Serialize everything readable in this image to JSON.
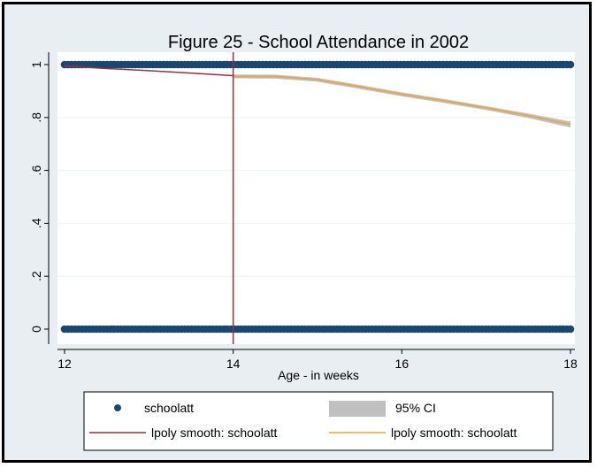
{
  "chart_data": {
    "type": "scatter",
    "title": "Figure 25 - School Attendance in 2002",
    "xlabel": "Age - in weeks",
    "ylabel": "",
    "xlim": [
      12,
      18
    ],
    "ylim": [
      0,
      1
    ],
    "x_ticks": [
      12,
      14,
      16,
      18
    ],
    "x_tick_labels": [
      "12",
      "14",
      "16",
      "18"
    ],
    "y_ticks": [
      0,
      0.2,
      0.4,
      0.6,
      0.8,
      1
    ],
    "y_tick_labels": [
      "0",
      ".2",
      ".4",
      ".6",
      ".8",
      "1"
    ],
    "grid": true,
    "vertical_line_x": 14,
    "scatter": {
      "name": "schoolatt",
      "color": "#1a476f",
      "y_levels": [
        0,
        1
      ],
      "x_range": [
        12,
        18
      ]
    },
    "ci_band": {
      "name": "95% CI",
      "color": "#c0c0c0",
      "x": [
        14.0,
        14.5,
        15.0,
        15.5,
        16.0,
        16.5,
        17.0,
        17.5,
        18.0
      ],
      "lower": [
        0.948,
        0.947,
        0.935,
        0.908,
        0.88,
        0.855,
        0.828,
        0.798,
        0.762
      ],
      "upper": [
        0.963,
        0.962,
        0.95,
        0.923,
        0.895,
        0.87,
        0.843,
        0.815,
        0.785
      ]
    },
    "series": [
      {
        "name": "lpoly smooth: schoolatt",
        "color": "#90353b",
        "x": [
          12.0,
          12.5,
          13.0,
          13.5,
          14.0
        ],
        "y": [
          0.995,
          0.985,
          0.977,
          0.968,
          0.958
        ]
      },
      {
        "name": "lpoly smooth: schoolatt",
        "color": "#e8a33a",
        "x": [
          14.0,
          14.5,
          15.0,
          15.5,
          16.0,
          16.5,
          17.0,
          17.5,
          18.0
        ],
        "y": [
          0.955,
          0.955,
          0.943,
          0.916,
          0.888,
          0.863,
          0.836,
          0.807,
          0.774
        ]
      }
    ],
    "legend": {
      "placement": "bottom",
      "items": [
        {
          "label": "schoolatt",
          "kind": "marker"
        },
        {
          "label": "95% CI",
          "kind": "band"
        },
        {
          "label": "lpoly smooth: schoolatt",
          "kind": "line-red"
        },
        {
          "label": "lpoly smooth: schoolatt",
          "kind": "line-orange"
        }
      ]
    }
  }
}
